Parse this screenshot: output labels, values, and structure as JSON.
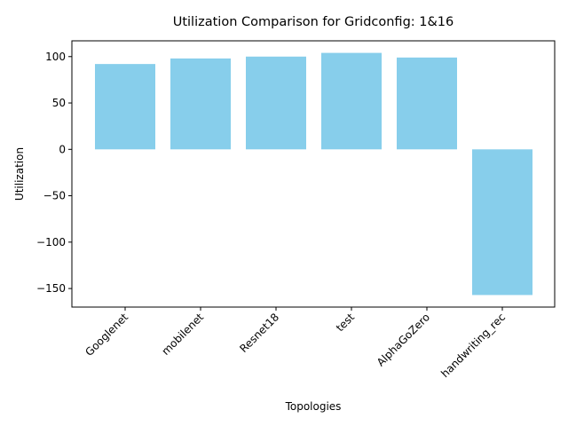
{
  "chart_data": {
    "type": "bar",
    "title": "Utilization Comparison for Gridconfig: 1&16",
    "xlabel": "Topologies",
    "ylabel": "Utilization",
    "categories": [
      "Googlenet",
      "mobilenet",
      "Resnet18",
      "test",
      "AlphaGoZero",
      "handwriting_rec"
    ],
    "values": [
      92,
      98,
      100,
      104,
      99,
      -157
    ],
    "ylim": [
      -170,
      117
    ],
    "yticks": [
      -150,
      -100,
      -50,
      0,
      50,
      100
    ],
    "bar_color": "#87ceeb",
    "grid": false,
    "legend": "none"
  }
}
